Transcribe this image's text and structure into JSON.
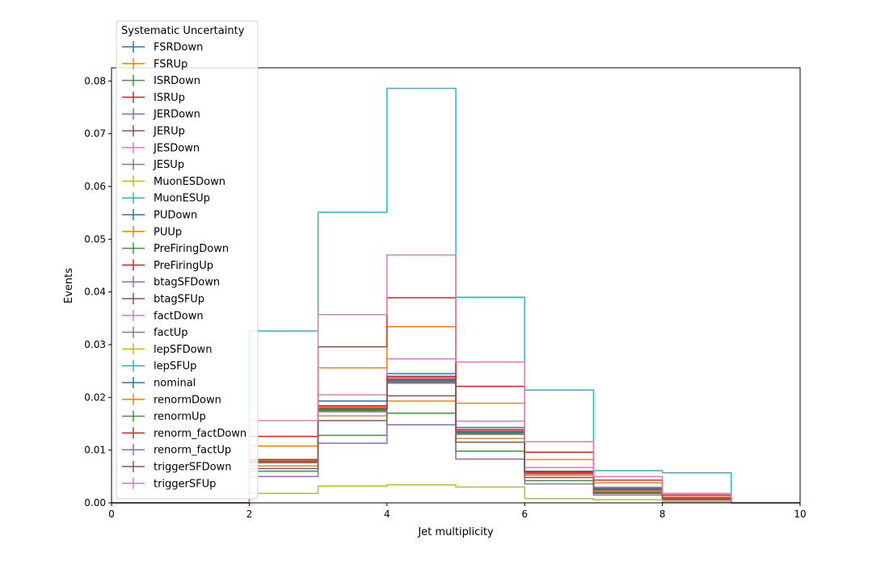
{
  "chart_data": {
    "type": "step",
    "xlabel": "Jet multiplicity",
    "ylabel": "Events",
    "xlim": [
      0,
      10
    ],
    "ylim": [
      0,
      0.0825
    ],
    "xticks": [
      "0",
      "2",
      "4",
      "6",
      "8",
      "10"
    ],
    "yticks": [
      "0.00",
      "0.01",
      "0.02",
      "0.03",
      "0.04",
      "0.05",
      "0.06",
      "0.07",
      "0.08"
    ],
    "grid": false,
    "legend_title": "Systematic Uncertainty",
    "legend_position": "upper-left",
    "bin_edges": [
      0,
      1,
      2,
      3,
      4,
      5,
      6,
      7,
      8,
      9,
      10
    ],
    "series": [
      {
        "name": "FSRDown",
        "color": "#1f77b4",
        "values": [
          0,
          0,
          0.0082,
          0.0193,
          0.0245,
          0.0143,
          0.006,
          0.0028,
          0.0009,
          0,
          0
        ]
      },
      {
        "name": "FSRUp",
        "color": "#ff7f0e",
        "values": [
          0,
          0,
          0.007,
          0.0165,
          0.0193,
          0.0122,
          0.0052,
          0.0021,
          0.0006,
          0,
          0
        ]
      },
      {
        "name": "ISRDown",
        "color": "#2ca02c",
        "values": [
          0,
          0,
          0.006,
          0.0128,
          0.017,
          0.0098,
          0.0042,
          0.0018,
          0.0006,
          0,
          0
        ]
      },
      {
        "name": "ISRUp",
        "color": "#d62728",
        "values": [
          0,
          0,
          0.0077,
          0.0178,
          0.0228,
          0.0135,
          0.0058,
          0.0026,
          0.0008,
          0,
          0
        ]
      },
      {
        "name": "JERDown",
        "color": "#9467bd",
        "values": [
          0,
          0,
          0.005,
          0.0113,
          0.0148,
          0.0083,
          0.0036,
          0.0015,
          0.0005,
          0,
          0
        ]
      },
      {
        "name": "JERUp",
        "color": "#8c564b",
        "values": [
          0,
          0,
          0.0065,
          0.0156,
          0.0203,
          0.0115,
          0.0048,
          0.002,
          0.0007,
          0,
          0
        ]
      },
      {
        "name": "JESDown",
        "color": "#e377c2",
        "values": [
          0,
          0,
          0.0082,
          0.0205,
          0.0273,
          0.0155,
          0.0067,
          0.003,
          0.001,
          0,
          0
        ]
      },
      {
        "name": "JESUp",
        "color": "#7f7f7f",
        "values": [
          0,
          0,
          0.0078,
          0.0177,
          0.0232,
          0.0133,
          0.0056,
          0.0025,
          0.0008,
          0,
          0
        ]
      },
      {
        "name": "MuonESDown",
        "color": "#bcbd22",
        "values": [
          0,
          0,
          0.0018,
          0.0032,
          0.0034,
          0.003,
          0.0008,
          0.0006,
          0.0002,
          0,
          0
        ]
      },
      {
        "name": "MuonESUp",
        "color": "#17becf",
        "values": [
          0,
          0,
          0.0326,
          0.0551,
          0.0786,
          0.039,
          0.0214,
          0.0061,
          0.0057,
          0,
          0
        ]
      },
      {
        "name": "PUDown",
        "color": "#1f77b4",
        "values": [
          0,
          0,
          0.008,
          0.018,
          0.0235,
          0.0136,
          0.0058,
          0.0025,
          0.0008,
          0,
          0
        ]
      },
      {
        "name": "PUUp",
        "color": "#ff7f0e",
        "values": [
          0,
          0,
          0.0108,
          0.0256,
          0.0334,
          0.0189,
          0.0082,
          0.0038,
          0.0012,
          0,
          0
        ]
      },
      {
        "name": "PreFiringDown",
        "color": "#2ca02c",
        "values": [
          0,
          0,
          0.0079,
          0.0179,
          0.0234,
          0.0135,
          0.0057,
          0.0025,
          0.0008,
          0,
          0
        ]
      },
      {
        "name": "PreFiringUp",
        "color": "#d62728",
        "values": [
          0,
          0,
          0.0126,
          0.0296,
          0.0389,
          0.0221,
          0.0096,
          0.0043,
          0.0015,
          0,
          0
        ]
      },
      {
        "name": "btagSFDown",
        "color": "#9467bd",
        "values": [
          0,
          0,
          0.0081,
          0.0181,
          0.0237,
          0.0137,
          0.0058,
          0.0026,
          0.0008,
          0,
          0
        ]
      },
      {
        "name": "btagSFUp",
        "color": "#8c564b",
        "values": [
          0,
          0,
          0.0078,
          0.0177,
          0.0231,
          0.0133,
          0.0056,
          0.0025,
          0.0008,
          0,
          0
        ]
      },
      {
        "name": "factDown",
        "color": "#e377c2",
        "values": [
          0,
          0,
          0.008,
          0.0181,
          0.0236,
          0.0137,
          0.0058,
          0.0026,
          0.0008,
          0,
          0
        ]
      },
      {
        "name": "factUp",
        "color": "#7f7f7f",
        "values": [
          0,
          0,
          0.0077,
          0.0176,
          0.023,
          0.0132,
          0.0056,
          0.0025,
          0.0008,
          0,
          0
        ]
      },
      {
        "name": "lepSFDown",
        "color": "#bcbd22",
        "values": [
          0,
          0,
          0.0076,
          0.0173,
          0.0228,
          0.0131,
          0.0055,
          0.0024,
          0.0008,
          0,
          0
        ]
      },
      {
        "name": "lepSFUp",
        "color": "#17becf",
        "values": [
          0,
          0,
          0.0082,
          0.0184,
          0.024,
          0.0139,
          0.0059,
          0.0026,
          0.0009,
          0,
          0
        ]
      },
      {
        "name": "nominal",
        "color": "#1f77b4",
        "values": [
          0,
          0,
          0.0079,
          0.0179,
          0.0234,
          0.0135,
          0.0057,
          0.0025,
          0.0008,
          0,
          0
        ]
      },
      {
        "name": "renormDown",
        "color": "#ff7f0e",
        "values": [
          0,
          0,
          0.0081,
          0.0182,
          0.0238,
          0.0138,
          0.0058,
          0.0026,
          0.0009,
          0,
          0
        ]
      },
      {
        "name": "renormUp",
        "color": "#2ca02c",
        "values": [
          0,
          0,
          0.0077,
          0.0175,
          0.0229,
          0.0132,
          0.0056,
          0.0024,
          0.0008,
          0,
          0
        ]
      },
      {
        "name": "renorm_factDown",
        "color": "#d62728",
        "values": [
          0,
          0,
          0.0082,
          0.0184,
          0.024,
          0.0139,
          0.0059,
          0.0026,
          0.0009,
          0,
          0
        ]
      },
      {
        "name": "renorm_factUp",
        "color": "#9467bd",
        "values": [
          0,
          0,
          0.0076,
          0.0173,
          0.0227,
          0.013,
          0.0055,
          0.0024,
          0.0008,
          0,
          0
        ]
      },
      {
        "name": "triggerSFDown",
        "color": "#8c564b",
        "values": [
          0,
          0,
          0.0078,
          0.0177,
          0.0232,
          0.0134,
          0.0057,
          0.0025,
          0.0008,
          0,
          0
        ]
      },
      {
        "name": "triggerSFUp",
        "color": "#e377c2",
        "values": [
          0,
          0,
          0.0156,
          0.0357,
          0.047,
          0.0267,
          0.0116,
          0.005,
          0.0018,
          0,
          0
        ]
      }
    ]
  }
}
